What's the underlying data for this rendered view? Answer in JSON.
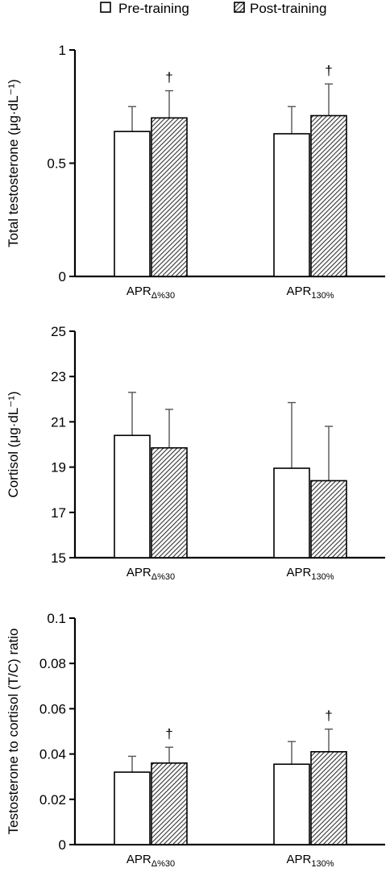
{
  "legend": {
    "items": [
      {
        "label": "Pre-training",
        "fill": "white"
      },
      {
        "label": "Post-training",
        "fill": "hatch"
      }
    ]
  },
  "colors": {
    "axis": "#000000",
    "bar_stroke": "#000000",
    "error_bar": "#555555",
    "hatch": "#333333"
  },
  "chart_data": [
    {
      "type": "bar",
      "ylabel": "Total testosterone (μg·dL⁻¹)",
      "ylim": [
        0,
        1
      ],
      "yticks": [
        "0",
        "0.5",
        "1"
      ],
      "categories": [
        {
          "base": "APR",
          "sub": "Δ%30"
        },
        {
          "base": "APR",
          "sub": "130%"
        }
      ],
      "series": [
        {
          "name": "Pre-training",
          "values": [
            0.64,
            0.63
          ],
          "errors": [
            0.11,
            0.12
          ]
        },
        {
          "name": "Post-training",
          "values": [
            0.7,
            0.71
          ],
          "errors": [
            0.12,
            0.14
          ]
        }
      ],
      "annotations": [
        {
          "category_index": 0,
          "series_index": 1,
          "text": "†"
        },
        {
          "category_index": 1,
          "series_index": 1,
          "text": "†"
        }
      ],
      "grid": false
    },
    {
      "type": "bar",
      "ylabel": "Cortisol (μg·dL⁻¹)",
      "ylim": [
        15,
        25
      ],
      "yticks": [
        "15",
        "17",
        "19",
        "21",
        "23",
        "25"
      ],
      "categories": [
        {
          "base": "APR",
          "sub": "Δ%30"
        },
        {
          "base": "APR",
          "sub": "130%"
        }
      ],
      "series": [
        {
          "name": "Pre-training",
          "values": [
            20.4,
            18.95
          ],
          "errors": [
            1.9,
            2.9
          ]
        },
        {
          "name": "Post-training",
          "values": [
            19.85,
            18.4
          ],
          "errors": [
            1.7,
            2.4
          ]
        }
      ],
      "annotations": [],
      "grid": false
    },
    {
      "type": "bar",
      "ylabel": "Testosterone to cortisol (T/C) ratio",
      "ylim": [
        0,
        0.1
      ],
      "yticks": [
        "0",
        "0.02",
        "0.04",
        "0.06",
        "0.08",
        "0.1"
      ],
      "categories": [
        {
          "base": "APR",
          "sub": "Δ%30"
        },
        {
          "base": "APR",
          "sub": "130%"
        }
      ],
      "series": [
        {
          "name": "Pre-training",
          "values": [
            0.032,
            0.0355
          ],
          "errors": [
            0.007,
            0.01
          ]
        },
        {
          "name": "Post-training",
          "values": [
            0.036,
            0.041
          ],
          "errors": [
            0.007,
            0.01
          ]
        }
      ],
      "annotations": [
        {
          "category_index": 0,
          "series_index": 1,
          "text": "†"
        },
        {
          "category_index": 1,
          "series_index": 1,
          "text": "†"
        }
      ],
      "grid": false
    }
  ]
}
